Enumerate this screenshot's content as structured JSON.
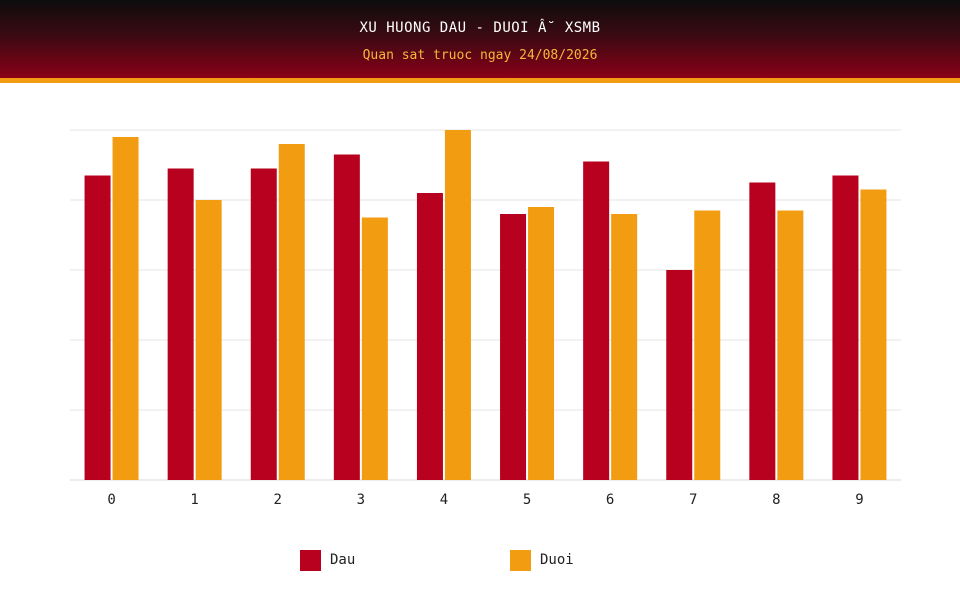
{
  "header": {
    "title": "XU HUONG DAU - DUOI Â˘ XSMB",
    "subtitle": "Quan sat truoc ngay 24/08/2026"
  },
  "colors": {
    "dau": "#b8001f",
    "duoi": "#f29c12",
    "grid": "#e6e6e6"
  },
  "chart_data": {
    "type": "bar",
    "categories": [
      "0",
      "1",
      "2",
      "3",
      "4",
      "5",
      "6",
      "7",
      "8",
      "9"
    ],
    "series": [
      {
        "name": "Dau",
        "color": "#b8001f",
        "values": [
          87,
          89,
          89,
          93,
          82,
          76,
          91,
          60,
          85,
          87
        ]
      },
      {
        "name": "Duoi",
        "color": "#f29c12",
        "values": [
          98,
          80,
          96,
          75,
          100,
          78,
          76,
          77,
          77,
          83
        ]
      }
    ],
    "ylim": [
      0,
      100
    ],
    "grid": true,
    "y_tick_labels_shown": false,
    "legend_position": "bottom"
  }
}
